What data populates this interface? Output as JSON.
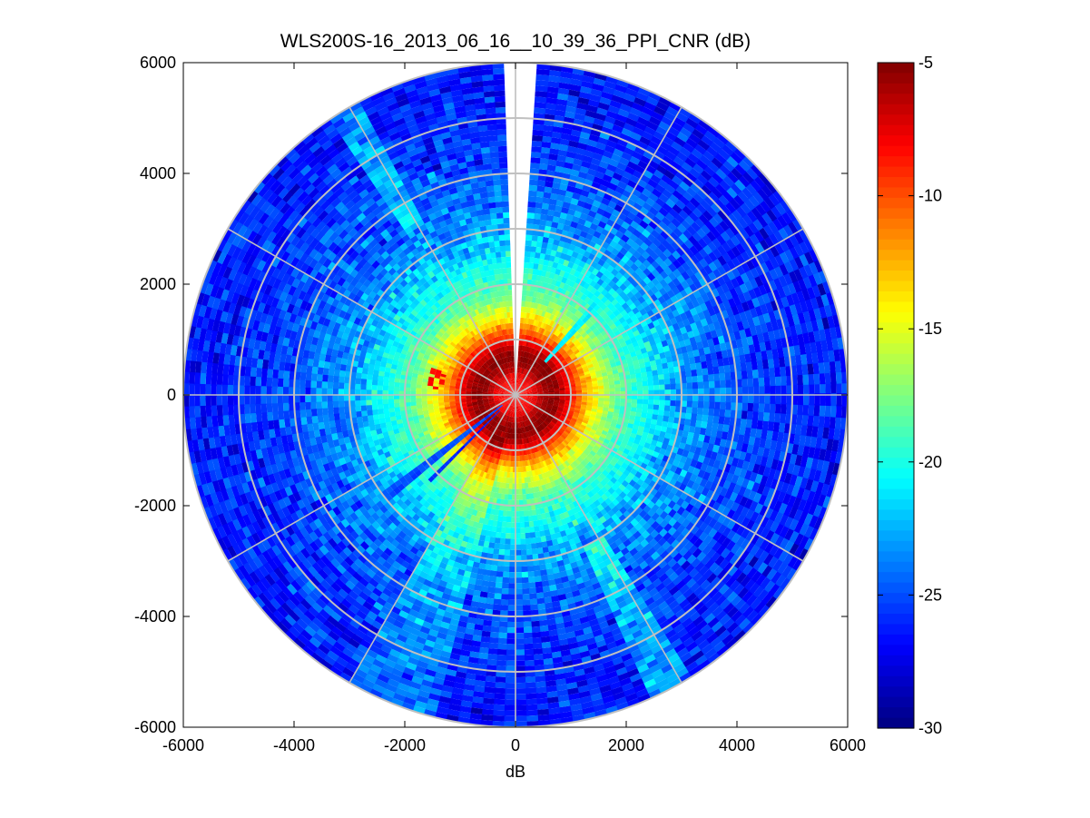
{
  "chart_data": {
    "type": "heatmap",
    "title": "WLS200S-16_2013_06_16__10_39_36_PPI_CNR (dB)",
    "xlabel": "dB",
    "ylabel": "",
    "xlim": [
      -6000,
      6000
    ],
    "ylim": [
      -6000,
      6000
    ],
    "x_ticks": [
      "-6000",
      "-4000",
      "-2000",
      "0",
      "2000",
      "4000",
      "6000"
    ],
    "y_ticks": [
      "6000",
      "4000",
      "2000",
      "0",
      "-2000",
      "-4000",
      "-6000"
    ],
    "polar": {
      "max_range": 6000,
      "range_rings": [
        1000,
        2000,
        3000,
        4000,
        5000,
        6000
      ],
      "spoke_angles_deg": [
        0,
        30,
        60,
        90,
        120,
        150,
        180,
        210,
        240,
        270,
        300,
        330
      ],
      "grid": true,
      "grid_color": "#c0c0c0"
    },
    "radial_profile": {
      "range": [
        0,
        300,
        500,
        700,
        900,
        1100,
        1400,
        1800,
        2500,
        3000,
        4000,
        5000,
        6000
      ],
      "cnr_db": [
        -8,
        -8,
        -6,
        -5,
        -7,
        -10,
        -14,
        -18,
        -21,
        -23,
        -25,
        -26,
        -26.5
      ]
    },
    "gaps": [
      {
        "from_deg": 87,
        "to_deg": 90
      },
      {
        "from_deg": 90,
        "to_deg": 92
      }
    ],
    "features": [
      {
        "type": "narrow-streak",
        "angle_deg": 218,
        "from_range": 300,
        "to_range": 3000,
        "cnr_db": -25
      },
      {
        "type": "narrow-streak",
        "angle_deg": 225,
        "from_range": 400,
        "to_range": 2200,
        "cnr_db": -26
      },
      {
        "type": "narrow-streak",
        "angle_deg": 48,
        "from_range": 800,
        "to_range": 2300,
        "cnr_db": -21
      },
      {
        "type": "bright-wedge",
        "from_deg": 240,
        "to_deg": 255,
        "from_range": 800,
        "to_range": 6000,
        "delta_db": 2
      },
      {
        "type": "bright-wedge",
        "from_deg": 295,
        "to_deg": 301,
        "from_range": 3000,
        "to_range": 6000,
        "delta_db": 3
      },
      {
        "type": "bright-wedge",
        "from_deg": 119,
        "to_deg": 123,
        "from_range": 3500,
        "to_range": 6000,
        "delta_db": 3
      },
      {
        "type": "hot-spot",
        "angle_deg": 168,
        "range": 1450,
        "cnr_db": -8
      }
    ],
    "colorbar": {
      "colormap": "jet",
      "min": -30,
      "max": -5,
      "ticks": [
        "-5",
        "-10",
        "-15",
        "-20",
        "-25",
        "-30"
      ]
    }
  }
}
